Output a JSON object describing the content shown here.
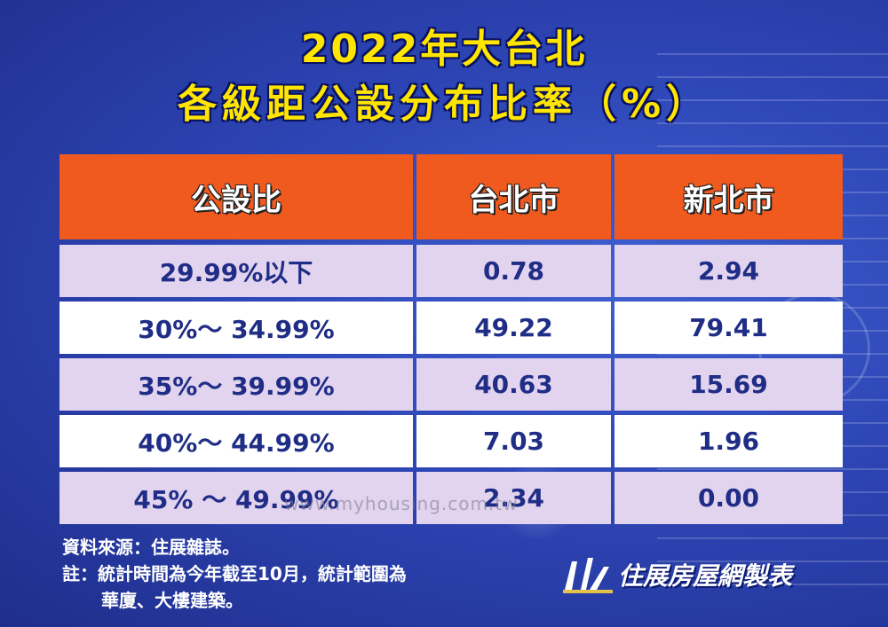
{
  "title": {
    "line1": "2022年大台北",
    "line2": "各級距公設分布比率（%）"
  },
  "table": {
    "headers": [
      "公設比",
      "台北市",
      "新北市"
    ],
    "rows": [
      {
        "range": "29.99%以下",
        "taipei": "0.78",
        "new_taipei": "2.94"
      },
      {
        "range": "30%～ 34.99%",
        "taipei": "49.22",
        "new_taipei": "79.41"
      },
      {
        "range": "35%～ 39.99%",
        "taipei": "40.63",
        "new_taipei": "15.69"
      },
      {
        "range": "40%～ 44.99%",
        "taipei": "7.03",
        "new_taipei": "1.96"
      },
      {
        "range": "45% ～ 49.99%",
        "taipei": "2.34",
        "new_taipei": "0.00"
      }
    ]
  },
  "watermark": "www.myhousing.com.tw",
  "notes": {
    "source": "資料來源：住展雜誌。",
    "note_line1": "註：統計時間為今年截至10月，統計範圍為",
    "note_line2": "華廈、大樓建築。"
  },
  "logo": {
    "text": "住展房屋網製表"
  },
  "colors": {
    "background": "#2d45b5",
    "title": "#ffe500",
    "header": "#f05a1e",
    "row_alt": "#e2d3ef",
    "row_plain": "#ffffff",
    "cell_text": "#1f2d86"
  }
}
